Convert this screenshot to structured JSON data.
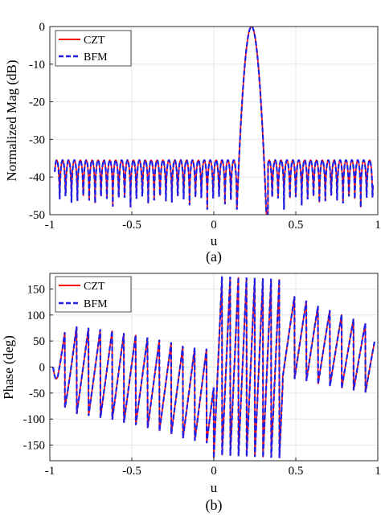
{
  "chart_data": [
    {
      "type": "line",
      "caption": "(a)",
      "xlabel": "u",
      "ylabel": "Normalized Mag (dB)",
      "xlim": [
        -1,
        1
      ],
      "ylim": [
        -50,
        0
      ],
      "xticks": [
        -1,
        -0.5,
        0,
        0.5,
        1
      ],
      "xtick_labels": [
        "-1",
        "-0.5",
        "0",
        "0.5",
        "1"
      ],
      "yticks": [
        0,
        -10,
        -20,
        -30,
        -40,
        -50
      ],
      "ytick_labels": [
        "0",
        "-10",
        "-20",
        "-30",
        "-40",
        "-50"
      ],
      "grid": true,
      "legend_position": "top-left",
      "series": [
        {
          "name": "CZT",
          "color": "#ff0000",
          "style": "solid"
        },
        {
          "name": "BFM",
          "color": "#1f1fe6",
          "style": "dashed"
        }
      ],
      "mainlobe": {
        "peak_u": 0.23,
        "peak_db": 0,
        "null_left_u": 0.14,
        "null_right_u": 0.33
      },
      "sidelobes": {
        "level_db": -35.5,
        "floor_db": -50,
        "lobe_width_u": 0.036,
        "u_range": [
          -0.97,
          0.97
        ]
      }
    },
    {
      "type": "line",
      "caption": "(b)",
      "xlabel": "u",
      "ylabel": "Phase (deg)",
      "xlim": [
        -1,
        1
      ],
      "ylim": [
        -180,
        180
      ],
      "xticks": [
        -1,
        -0.5,
        0,
        0.5,
        1
      ],
      "xtick_labels": [
        "-1",
        "-0.5",
        "0",
        "0.5",
        "1"
      ],
      "yticks": [
        150,
        100,
        50,
        0,
        -50,
        -100,
        -150
      ],
      "ytick_labels": [
        "150",
        "100",
        "50",
        "0",
        "-50",
        "-100",
        "-150"
      ],
      "grid": true,
      "legend_position": "top-left",
      "series": [
        {
          "name": "CZT",
          "color": "#ff0000",
          "style": "solid"
        },
        {
          "name": "BFM",
          "color": "#1f1fe6",
          "style": "dashed"
        }
      ],
      "sawtooth_period_u": 0.072,
      "envelope_deg": [
        [
          -0.98,
          0
        ],
        [
          -0.95,
          60
        ],
        [
          -0.85,
          80
        ],
        [
          -0.5,
          65
        ],
        [
          -0.15,
          40
        ],
        [
          0.0,
          35
        ]
      ],
      "envelope_low_deg": [
        [
          -0.98,
          0
        ],
        [
          -0.95,
          -70
        ],
        [
          -0.85,
          -90
        ],
        [
          -0.5,
          -110
        ],
        [
          -0.15,
          -140
        ],
        [
          0.0,
          -150
        ]
      ]
    }
  ]
}
